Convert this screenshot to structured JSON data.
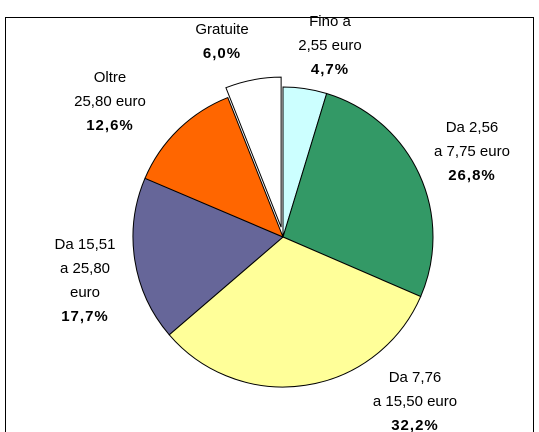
{
  "chart_data": {
    "type": "pie",
    "labels": [
      [
        "Fino a",
        "2,55 euro"
      ],
      [
        "Da 2,56",
        "a 7,75 euro"
      ],
      [
        "Da 7,76",
        "a 15,50 euro"
      ],
      [
        "Da 15,51",
        "a 25,80",
        "euro"
      ],
      [
        "Oltre",
        "25,80 euro"
      ],
      [
        "Gratuite"
      ]
    ],
    "values": [
      4.7,
      26.8,
      32.2,
      17.7,
      12.6,
      6.0
    ],
    "value_labels": [
      "4,7%",
      "26,8%",
      "32,2%",
      "17,7%",
      "12,6%",
      "6,0%"
    ],
    "colors": [
      "#ccffff",
      "#339966",
      "#ffff99",
      "#666699",
      "#ff6600",
      "#ffffff"
    ],
    "exploded": [
      5
    ]
  }
}
